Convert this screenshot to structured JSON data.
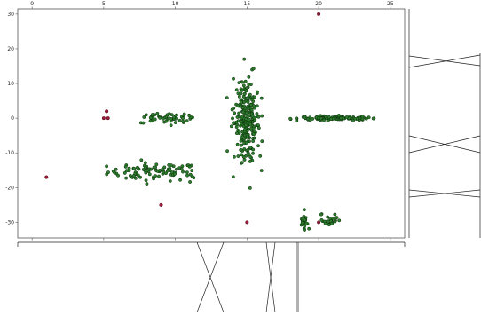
{
  "chart_data": {
    "type": "scatter",
    "title": "",
    "xlabel": "",
    "ylabel": "",
    "xlim": [
      -1.0,
      26.0
    ],
    "ylim": [
      -34.5,
      31.5
    ],
    "x_ticks": [
      0,
      5,
      10,
      15,
      20,
      25
    ],
    "y_ticks": [
      30,
      20,
      10,
      0,
      -10,
      -20,
      -30
    ],
    "x_tick_position": "top",
    "grid": false,
    "legend": "none",
    "colors": {
      "cluster_fill": "#2e7d2e",
      "cluster_edge": "#0b2f0b",
      "outlier_fill": "#a01a3a",
      "outlier_edge": "#4a0a18",
      "axes": "#555555"
    },
    "clusters": [
      {
        "cx": 8.5,
        "cy": -15.5,
        "sx": 1.6,
        "sy": 1.3,
        "n": 100,
        "xmin": 2.8,
        "xmax": 11.3
      },
      {
        "cx": 9.5,
        "cy": 0.0,
        "sx": 1.0,
        "sy": 0.9,
        "n": 55,
        "xmin": 7.0,
        "xmax": 11.3
      },
      {
        "cx": 15.0,
        "cy": -1.0,
        "sx": 0.45,
        "sy": 5.5,
        "n": 250,
        "xmin": 13.6,
        "xmax": 16.6
      },
      {
        "cx": 21.0,
        "cy": 0.0,
        "sx": 1.4,
        "sy": 0.3,
        "n": 110,
        "xmin": 18.0,
        "xmax": 24.0
      },
      {
        "cx": 19.0,
        "cy": -30.0,
        "sx": 0.12,
        "sy": 1.3,
        "n": 25,
        "xmin": 18.6,
        "xmax": 19.4
      },
      {
        "cx": 20.8,
        "cy": -30.0,
        "sx": 0.3,
        "sy": 1.2,
        "n": 25,
        "xmin": 20.1,
        "xmax": 21.5
      }
    ],
    "outliers": [
      {
        "x": 1.0,
        "y": -17.0
      },
      {
        "x": 5.0,
        "y": 0.0
      },
      {
        "x": 5.2,
        "y": 2.0
      },
      {
        "x": 5.3,
        "y": 0.0
      },
      {
        "x": 9.0,
        "y": -25.0
      },
      {
        "x": 15.0,
        "y": -30.0
      },
      {
        "x": 20.0,
        "y": 30.0
      },
      {
        "x": 20.0,
        "y": -30.0
      }
    ]
  }
}
